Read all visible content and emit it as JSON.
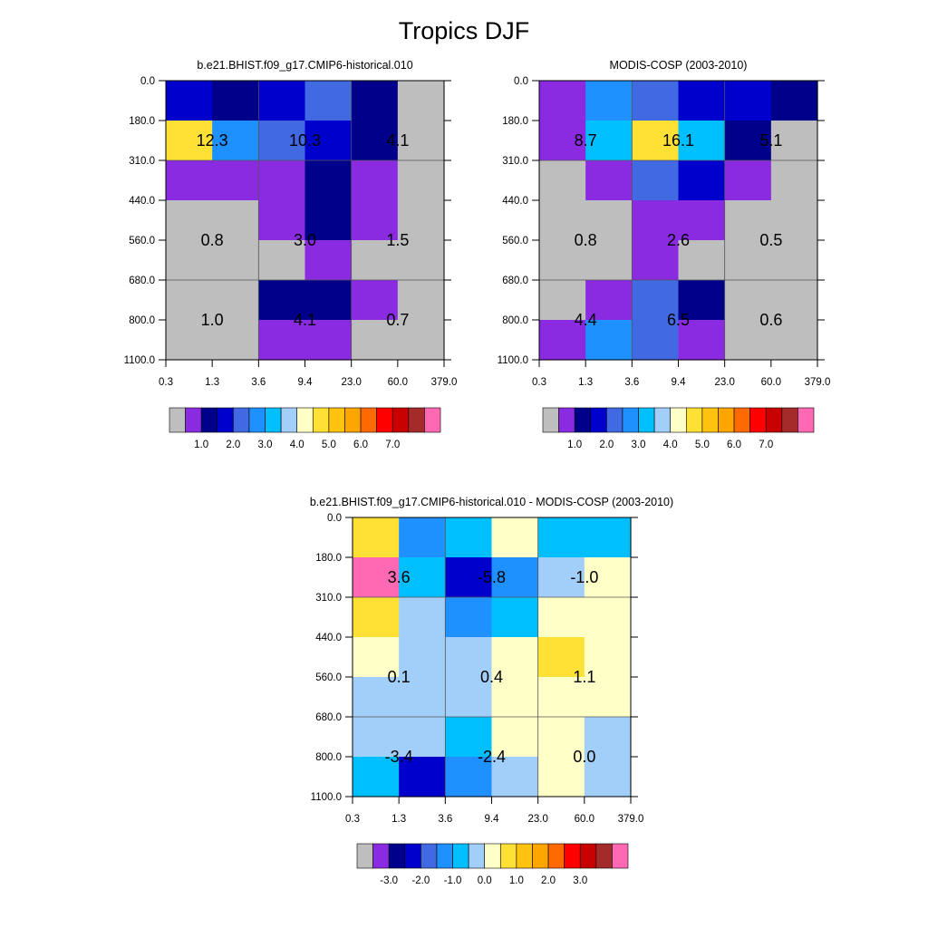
{
  "figure": {
    "title": "Tropics DJF"
  },
  "palette": {
    "grey": "#bebebe",
    "abs_colorbar": [
      "#bebebe",
      "#8a2be2",
      "#00008b",
      "#0000cd",
      "#4169e1",
      "#1e90ff",
      "#00bfff",
      "#a2cff9",
      "#ffffc8",
      "#ffe135",
      "#ffc20e",
      "#ffa500",
      "#ff6a00",
      "#ff0000",
      "#c80000",
      "#a52a2a",
      "#ff69b4"
    ],
    "diff_colorbar": [
      "#bebebe",
      "#8a2be2",
      "#00008b",
      "#0000cd",
      "#4169e1",
      "#1e90ff",
      "#00bfff",
      "#a2cff9",
      "#ffffc8",
      "#ffe135",
      "#ffc20e",
      "#ffa500",
      "#ff6a00",
      "#ff0000",
      "#c80000",
      "#a52a2a",
      "#ff69b4"
    ]
  },
  "chart_data": [
    {
      "type": "heatmap",
      "title": "b.e21.BHIST.f09_g17.CMIP6-historical.010",
      "x_tick_labels": [
        "0.3",
        "1.3",
        "3.6",
        "9.4",
        "23.0",
        "60.0",
        "379.0"
      ],
      "y_tick_labels": [
        "0.0",
        "180.0",
        "310.0",
        "440.0",
        "560.0",
        "680.0",
        "800.0",
        "1100.0"
      ],
      "colorbar_labels": [
        "1.0",
        "2.0",
        "3.0",
        "4.0",
        "5.0",
        "6.0",
        "7.0"
      ],
      "cell_colors": [
        [
          "#0000cd",
          "#00008b",
          "#0000cd",
          "#4169e1",
          "#00008b",
          "#bebebe"
        ],
        [
          "#ffe135",
          "#1e90ff",
          "#4169e1",
          "#0000cd",
          "#00008b",
          "#bebebe"
        ],
        [
          "#8a2be2",
          "#8a2be2",
          "#8a2be2",
          "#00008b",
          "#8a2be2",
          "#bebebe"
        ],
        [
          "#bebebe",
          "#bebebe",
          "#8a2be2",
          "#00008b",
          "#8a2be2",
          "#bebebe"
        ],
        [
          "#bebebe",
          "#bebebe",
          "#bebebe",
          "#8a2be2",
          "#bebebe",
          "#bebebe"
        ],
        [
          "#bebebe",
          "#bebebe",
          "#00008b",
          "#00008b",
          "#8a2be2",
          "#bebebe"
        ],
        [
          "#bebebe",
          "#bebebe",
          "#8a2be2",
          "#8a2be2",
          "#bebebe",
          "#bebebe"
        ]
      ],
      "group_values": [
        [
          "12.3",
          "10.3",
          "4.1"
        ],
        [
          "0.8",
          "3.0",
          "1.5"
        ],
        [
          "1.0",
          "4.1",
          "0.7"
        ]
      ]
    },
    {
      "type": "heatmap",
      "title": "MODIS-COSP (2003-2010)",
      "x_tick_labels": [
        "0.3",
        "1.3",
        "3.6",
        "9.4",
        "23.0",
        "60.0",
        "379.0"
      ],
      "y_tick_labels": [
        "0.0",
        "180.0",
        "310.0",
        "440.0",
        "560.0",
        "680.0",
        "800.0",
        "1100.0"
      ],
      "colorbar_labels": [
        "1.0",
        "2.0",
        "3.0",
        "4.0",
        "5.0",
        "6.0",
        "7.0"
      ],
      "cell_colors": [
        [
          "#8a2be2",
          "#1e90ff",
          "#4169e1",
          "#0000cd",
          "#0000cd",
          "#00008b"
        ],
        [
          "#8a2be2",
          "#00bfff",
          "#ffe135",
          "#00bfff",
          "#00008b",
          "#bebebe"
        ],
        [
          "#bebebe",
          "#8a2be2",
          "#4169e1",
          "#0000cd",
          "#8a2be2",
          "#bebebe"
        ],
        [
          "#bebebe",
          "#bebebe",
          "#8a2be2",
          "#8a2be2",
          "#bebebe",
          "#bebebe"
        ],
        [
          "#bebebe",
          "#bebebe",
          "#8a2be2",
          "#bebebe",
          "#bebebe",
          "#bebebe"
        ],
        [
          "#bebebe",
          "#8a2be2",
          "#4169e1",
          "#00008b",
          "#bebebe",
          "#bebebe"
        ],
        [
          "#8a2be2",
          "#1e90ff",
          "#4169e1",
          "#8a2be2",
          "#bebebe",
          "#bebebe"
        ]
      ],
      "group_values": [
        [
          "8.7",
          "16.1",
          "5.1"
        ],
        [
          "0.8",
          "2.6",
          "0.5"
        ],
        [
          "4.4",
          "6.5",
          "0.6"
        ]
      ]
    },
    {
      "type": "heatmap",
      "title": "b.e21.BHIST.f09_g17.CMIP6-historical.010 - MODIS-COSP (2003-2010)",
      "x_tick_labels": [
        "0.3",
        "1.3",
        "3.6",
        "9.4",
        "23.0",
        "60.0",
        "379.0"
      ],
      "y_tick_labels": [
        "0.0",
        "180.0",
        "310.0",
        "440.0",
        "560.0",
        "680.0",
        "800.0",
        "1100.0"
      ],
      "colorbar_labels": [
        "-3.0",
        "-2.0",
        "-1.0",
        "0.0",
        "1.0",
        "2.0",
        "3.0"
      ],
      "cell_colors": [
        [
          "#ffe135",
          "#1e90ff",
          "#00bfff",
          "#ffffc8",
          "#00bfff",
          "#00bfff"
        ],
        [
          "#ff69b4",
          "#00bfff",
          "#0000cd",
          "#1e90ff",
          "#a2cff9",
          "#ffffc8"
        ],
        [
          "#ffe135",
          "#a2cff9",
          "#1e90ff",
          "#00bfff",
          "#ffffc8",
          "#ffffc8"
        ],
        [
          "#ffffc8",
          "#a2cff9",
          "#a2cff9",
          "#ffffc8",
          "#ffe135",
          "#ffffc8"
        ],
        [
          "#a2cff9",
          "#a2cff9",
          "#a2cff9",
          "#ffffc8",
          "#ffffc8",
          "#ffffc8"
        ],
        [
          "#a2cff9",
          "#a2cff9",
          "#00bfff",
          "#ffffc8",
          "#ffffc8",
          "#a2cff9"
        ],
        [
          "#00bfff",
          "#0000cd",
          "#1e90ff",
          "#a2cff9",
          "#ffffc8",
          "#a2cff9"
        ]
      ],
      "group_values": [
        [
          "3.6",
          "-5.8",
          "-1.0"
        ],
        [
          "0.1",
          "0.4",
          "1.1"
        ],
        [
          "-3.4",
          "-2.4",
          "0.0"
        ]
      ]
    }
  ]
}
